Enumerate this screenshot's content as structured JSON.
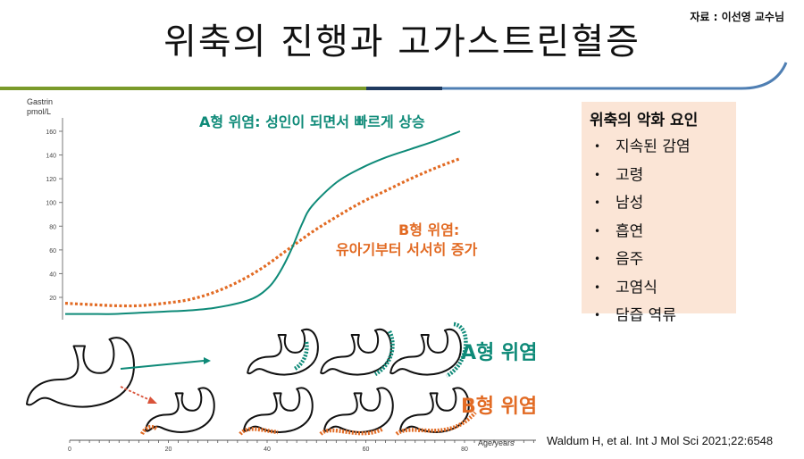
{
  "title": "위축의 진행과 고가스트린혈증",
  "source_top": "자료 : 이선영 교수님",
  "citation": "Waldum H, et al. Int J Mol Sci 2021;22:6548",
  "colors": {
    "type_a": "#0e8a78",
    "type_b": "#e26b24",
    "rule_green": "#7a9a2a",
    "rule_navy": "#1f3a5f",
    "rule_blue": "#4f7fb3",
    "factor_bg": "#fbe5d6"
  },
  "annotations": {
    "type_a": "A형 위염: 성인이 되면서 빠르게 상승",
    "type_b_line1": "B형 위염:",
    "type_b_line2": "유아기부터 서서히 증가"
  },
  "labels": {
    "type_a": "A형 위염",
    "type_b": "B형 위염"
  },
  "risk_factors": {
    "title": "위축의 악화 요인",
    "items": [
      "지속된 감염",
      "고령",
      "남성",
      "흡연",
      "음주",
      "고염식",
      "담즙 역류"
    ]
  },
  "chart_data": {
    "type": "line",
    "ylabel_line1": "Gastrin",
    "ylabel_line2": "pmol/L",
    "y_ticks": [
      20,
      40,
      60,
      80,
      100,
      120,
      140,
      160
    ],
    "ylim": [
      0,
      170
    ],
    "xlabel": "Age/years",
    "x_ticks": [
      0,
      20,
      40,
      60,
      80
    ],
    "xlim": [
      0,
      80
    ],
    "series": [
      {
        "name": "A형 위염",
        "x": [
          0,
          5,
          10,
          15,
          20,
          25,
          30,
          35,
          38,
          40,
          42,
          44,
          46,
          48,
          50,
          55,
          60,
          65,
          70,
          75,
          80
        ],
        "y": [
          6,
          6,
          6,
          7,
          8,
          9,
          11,
          15,
          19,
          24,
          32,
          45,
          62,
          82,
          97,
          117,
          129,
          138,
          145,
          152,
          160
        ]
      },
      {
        "name": "B형 위염",
        "x": [
          0,
          5,
          10,
          15,
          20,
          25,
          30,
          35,
          40,
          45,
          50,
          55,
          60,
          65,
          70,
          75,
          80
        ],
        "y": [
          15,
          14,
          13,
          13,
          15,
          18,
          24,
          33,
          45,
          60,
          75,
          88,
          100,
          110,
          120,
          129,
          137
        ]
      }
    ]
  }
}
